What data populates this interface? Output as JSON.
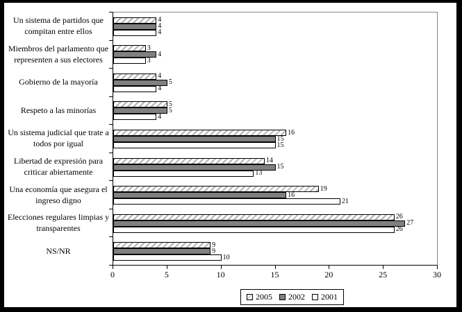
{
  "chart_data": {
    "type": "bar",
    "orientation": "horizontal",
    "title": "",
    "xlabel": "",
    "ylabel": "",
    "xlim": [
      0,
      30
    ],
    "x_ticks": [
      0,
      5,
      10,
      15,
      20,
      25,
      30
    ],
    "grid": false,
    "bar_value_labels_visible": true,
    "legend_position": "bottom-center",
    "categories": [
      "Un sistema de partidos que compitan entre ellos",
      "Miembros del parlamento que representen a sus electores",
      "Gobierno de la mayoría",
      "Respeto a las minorías",
      "Un sistema judicial que trate a todos por igual",
      "Libertad de expresión para criticar abiertamente",
      "Una economía que asegura el ingreso digno",
      "Elecciones regulares limpias y transparentes",
      "NS/NR"
    ],
    "series": [
      {
        "name": "2005",
        "pattern": "hatched",
        "values": [
          4,
          3,
          4,
          5,
          16,
          14,
          19,
          26,
          9
        ]
      },
      {
        "name": "2002",
        "pattern": "solid-gray",
        "values": [
          4,
          4,
          5,
          5,
          15,
          15,
          16,
          27,
          9
        ]
      },
      {
        "name": "2001",
        "pattern": "white",
        "values": [
          4,
          3,
          4,
          4,
          15,
          13,
          21,
          26,
          10
        ]
      }
    ],
    "colors": {
      "solid_bar_fill": "#808080",
      "hatch_stripe": "#b3b3b3",
      "bar_border": "#000000",
      "plot_border": "#848484",
      "axis_line": "#000000",
      "text": "#000000",
      "background": "#ffffff",
      "frame": "#000000"
    }
  }
}
